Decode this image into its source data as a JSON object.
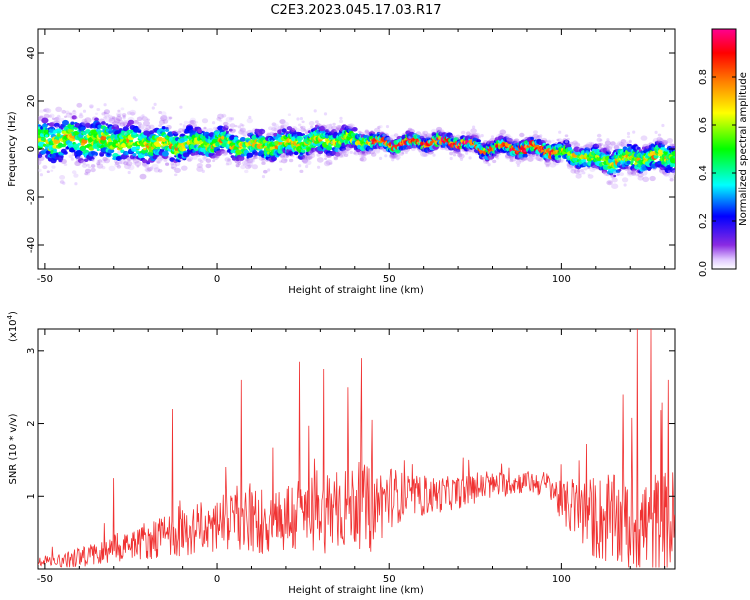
{
  "figure": {
    "title": "C2E3.2023.045.17.03.R17"
  },
  "chart_data": [
    {
      "type": "heatmap",
      "xlabel": "Height of straight line (km)",
      "ylabel": "Frequency (Hz)",
      "xlim": [
        -52,
        133
      ],
      "ylim": [
        -50,
        50
      ],
      "x_ticks": [
        -50,
        0,
        50,
        100
      ],
      "y_ticks": [
        -40,
        -20,
        0,
        20,
        40
      ],
      "colorbar": {
        "label": "Normalized spectral amplitude",
        "range": [
          0,
          1
        ],
        "ticks": [
          "0.0",
          "0.2",
          "0.4",
          "0.6",
          "0.8"
        ],
        "colormap": "rainbow"
      },
      "ridge_center_freq": {
        "x": [
          -52,
          -40,
          -30,
          -20,
          -10,
          0,
          10,
          20,
          30,
          40,
          50,
          60,
          70,
          78,
          85,
          95,
          105,
          115,
          122,
          133
        ],
        "y": [
          3,
          4,
          3,
          2,
          2,
          3,
          1,
          2,
          3,
          4,
          2,
          3,
          3,
          0,
          1,
          0,
          -3,
          -5,
          -4,
          -3
        ]
      },
      "ridge_spread_hz": {
        "x": [
          -52,
          -30,
          0,
          30,
          50,
          75,
          100,
          120,
          133
        ],
        "y": [
          9,
          9,
          6,
          6,
          3,
          3,
          4,
          6,
          6
        ]
      }
    },
    {
      "type": "line",
      "xlabel": "Height of straight line (km)",
      "ylabel": "SNR (10 * v/v)",
      "y_multiplier": "(x10",
      "y_multiplier_exp": "4",
      "xlim": [
        -52,
        133
      ],
      "ylim": [
        0,
        3.3
      ],
      "x_ticks": [
        -50,
        0,
        50,
        100
      ],
      "y_ticks": [
        1,
        2,
        3
      ],
      "color": "#f03232",
      "series": [
        {
          "baseline": {
            "x": [
              -52,
              -40,
              -30,
              -20,
              -10,
              0,
              10,
              20,
              30,
              40,
              45,
              50,
              60,
              70,
              80,
              90,
              97,
              100,
              110,
              120,
              133
            ],
            "y": [
              0.1,
              0.15,
              0.3,
              0.4,
              0.5,
              0.6,
              0.65,
              0.7,
              0.8,
              0.9,
              0.8,
              1.0,
              1.0,
              1.05,
              1.15,
              1.2,
              1.15,
              0.9,
              0.7,
              0.6,
              0.6
            ]
          },
          "spread": {
            "x": [
              -52,
              -30,
              0,
              30,
              45,
              55,
              75,
              90,
              97,
              110,
              133
            ],
            "y": [
              0.06,
              0.2,
              0.4,
              0.6,
              0.6,
              0.3,
              0.2,
              0.15,
              0.2,
              0.6,
              0.8
            ]
          },
          "peaks": [
            {
              "x": -30,
              "y": 1.25
            },
            {
              "x": -13,
              "y": 2.2
            },
            {
              "x": 7,
              "y": 2.6
            },
            {
              "x": 24,
              "y": 2.85
            },
            {
              "x": 31,
              "y": 2.75
            },
            {
              "x": 38,
              "y": 2.5
            },
            {
              "x": 42,
              "y": 2.9
            },
            {
              "x": 45,
              "y": 2.05
            },
            {
              "x": 118,
              "y": 2.4
            },
            {
              "x": 122,
              "y": 3.3
            },
            {
              "x": 126,
              "y": 3.3
            },
            {
              "x": 131,
              "y": 2.6
            }
          ]
        }
      ]
    }
  ]
}
